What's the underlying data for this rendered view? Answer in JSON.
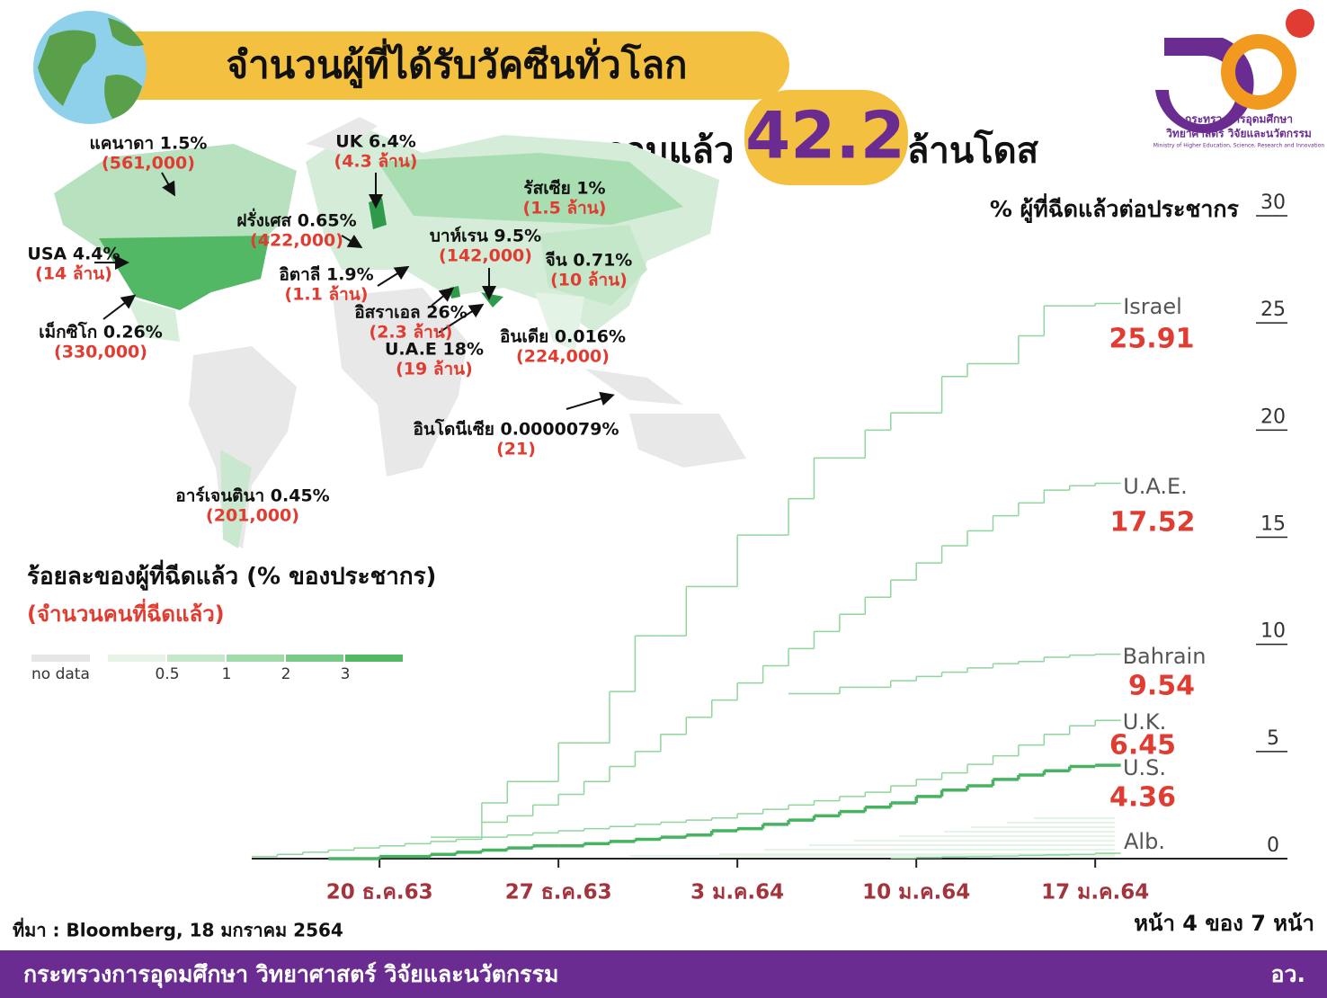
{
  "header": {
    "title": "จำนวนผู้ที่ได้รับวัคซีนทั่วโลก",
    "total_prefix": "รวมแล้ว",
    "total": "42.2",
    "total_suffix": "ล้านโดส"
  },
  "logo": {
    "line1": "กระทรวงการอุดมศึกษา",
    "line2": "วิทยาศาสตร์ วิจัยและนวัตกรรม",
    "line3": "Ministry of Higher Education, Science, Research and Innovation"
  },
  "map": {
    "labels": [
      {
        "name": "แคนาดา 1.5%",
        "count": "(561,000)"
      },
      {
        "name": "UK 6.4%",
        "count": "(4.3 ล้าน)"
      },
      {
        "name": "รัสเซีย 1%",
        "count": "(1.5 ล้าน)"
      },
      {
        "name": "ฝรั่งเศส 0.65%",
        "count": "(422,000)"
      },
      {
        "name": "บาห์เรน 9.5%",
        "count": "(142,000)"
      },
      {
        "name": "USA 4.4%",
        "count": "(14 ล้าน)"
      },
      {
        "name": "จีน 0.71%",
        "count": "(10 ล้าน)"
      },
      {
        "name": "อิตาลี 1.9%",
        "count": "(1.1 ล้าน)"
      },
      {
        "name": "อิสราเอล 26%",
        "count": "(2.3 ล้าน)"
      },
      {
        "name": "เม็กซิโก 0.26%",
        "count": "(330,000)"
      },
      {
        "name": "U.A.E 18%",
        "count": "(19 ล้าน)"
      },
      {
        "name": "อินเดีย 0.016%",
        "count": "(224,000)"
      },
      {
        "name": "อินโดนีเซีย 0.0000079%",
        "count": "(21)"
      },
      {
        "name": "อาร์เจนตินา 0.45%",
        "count": "(201,000)"
      }
    ],
    "legend_title": "ร้อยละของผู้ที่ฉีดแล้ว (% ของประชากร)",
    "legend_subtitle": "(จำนวนคนที่ฉีดแล้ว)",
    "legend_no_data": "no data",
    "legend_ticks": [
      0.5,
      1,
      2,
      3
    ],
    "legend_colors": [
      "#e6f4e8",
      "#c5e8cb",
      "#a0daa9",
      "#78ca87",
      "#53b866"
    ]
  },
  "chart_data": {
    "type": "step",
    "y_label": "% ผู้ที่ฉีดแล้วต่อประชากร",
    "x": [
      null,
      null,
      null,
      null,
      null,
      "20 ธ.ค.63",
      null,
      null,
      null,
      null,
      null,
      null,
      "27 ธ.ค.63",
      null,
      null,
      null,
      null,
      null,
      null,
      "3 ม.ค.64",
      null,
      null,
      null,
      null,
      null,
      null,
      "10 ม.ค.64",
      null,
      null,
      null,
      null,
      null,
      null,
      "17 ม.ค.64"
    ],
    "ylim": [
      0,
      30
    ],
    "yticks": [
      0,
      5,
      10,
      15,
      20,
      25,
      30
    ],
    "series": [
      {
        "name": "Israel",
        "color": "#8fd69d",
        "values": [
          null,
          null,
          null,
          null,
          null,
          null,
          null,
          1.0,
          1.0,
          2.6,
          3.6,
          3.6,
          5.4,
          5.4,
          7.8,
          10.4,
          10.4,
          12.7,
          12.7,
          15.1,
          15.1,
          16.8,
          18.7,
          18.7,
          20.0,
          20.8,
          20.8,
          22.5,
          23.1,
          23.1,
          24.4,
          25.8,
          25.8,
          25.91
        ]
      },
      {
        "name": "U.A.E.",
        "color": "#8fd69d",
        "values": [
          null,
          null,
          null,
          null,
          null,
          null,
          null,
          null,
          null,
          1.7,
          2.0,
          2.5,
          3.0,
          3.6,
          4.3,
          5.0,
          5.8,
          6.6,
          7.4,
          8.2,
          9.0,
          9.8,
          10.6,
          11.4,
          12.2,
          13.0,
          13.8,
          14.6,
          15.3,
          16.0,
          16.6,
          17.2,
          17.4,
          17.52
        ]
      },
      {
        "name": "Bahrain",
        "color": "#8fd69d",
        "values": [
          null,
          null,
          null,
          null,
          null,
          null,
          null,
          null,
          null,
          null,
          null,
          null,
          null,
          null,
          null,
          null,
          null,
          null,
          null,
          null,
          null,
          7.7,
          7.7,
          8.0,
          8.0,
          8.3,
          8.5,
          8.7,
          8.9,
          9.1,
          9.2,
          9.4,
          9.5,
          9.54
        ]
      },
      {
        "name": "U.K.",
        "color": "#8fd69d",
        "values": [
          0.1,
          0.2,
          0.3,
          0.4,
          0.5,
          0.6,
          0.7,
          0.8,
          0.9,
          1.0,
          1.1,
          1.2,
          1.3,
          1.4,
          1.5,
          1.6,
          1.7,
          1.8,
          1.9,
          2.1,
          2.3,
          2.5,
          2.7,
          2.9,
          3.1,
          3.4,
          3.7,
          4.0,
          4.4,
          4.8,
          5.3,
          5.8,
          6.2,
          6.45
        ]
      },
      {
        "name": "U.S.",
        "color": "#45b35f",
        "values": [
          null,
          null,
          null,
          0.0,
          0.0,
          0.1,
          0.1,
          0.2,
          0.3,
          0.4,
          0.5,
          0.6,
          0.6,
          0.7,
          0.8,
          0.9,
          1.0,
          1.1,
          1.3,
          1.4,
          1.6,
          1.8,
          2.0,
          2.2,
          2.4,
          2.6,
          2.9,
          3.2,
          3.4,
          3.7,
          3.9,
          4.1,
          4.3,
          4.36
        ]
      },
      {
        "name": "Alb.",
        "color": "#8fd69d",
        "values": [
          null,
          null,
          null,
          null,
          null,
          null,
          null,
          null,
          null,
          null,
          null,
          null,
          null,
          null,
          null,
          null,
          null,
          null,
          null,
          null,
          null,
          null,
          null,
          null,
          null,
          0.02,
          0.05,
          0.08,
          0.1,
          0.12,
          0.15,
          0.18,
          0.2,
          0.25
        ]
      }
    ]
  },
  "footer": {
    "source": "ที่มา : Bloomberg, 18 มกราคม 2564",
    "page": "หน้า 4 ของ 7 หน้า",
    "ministry": "กระทรวงการอุดมศึกษา วิทยาศาสตร์ วิจัยและนวัตกรรม",
    "abbr": "อว."
  }
}
